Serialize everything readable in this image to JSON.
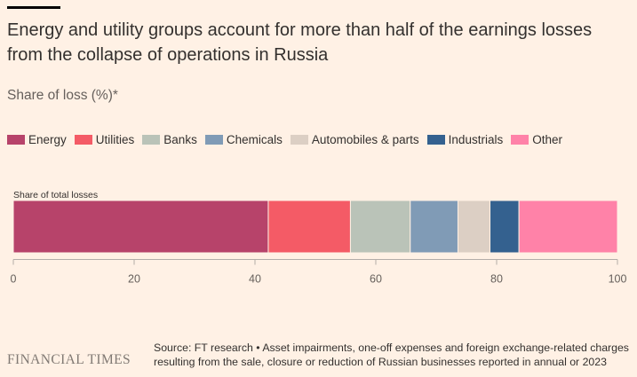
{
  "title": "Energy and utility groups account for more than half of the earnings losses from the collapse of operations in Russia",
  "subtitle": "Share of loss (%)*",
  "legend": [
    {
      "label": "Energy",
      "color": "#B7436A"
    },
    {
      "label": "Utilities",
      "color": "#F45B66"
    },
    {
      "label": "Banks",
      "color": "#BAC3B8"
    },
    {
      "label": "Chemicals",
      "color": "#809BB6"
    },
    {
      "label": "Automobiles & parts",
      "color": "#DCCFC4"
    },
    {
      "label": "Industrials",
      "color": "#34618F"
    },
    {
      "label": "Other",
      "color": "#FF82A8"
    }
  ],
  "chart_data": {
    "type": "bar",
    "orientation": "horizontal",
    "stacked": true,
    "categories": [
      "Share of total losses"
    ],
    "series": [
      {
        "name": "Energy",
        "values": [
          42.2
        ]
      },
      {
        "name": "Utilities",
        "values": [
          13.6
        ]
      },
      {
        "name": "Banks",
        "values": [
          9.9
        ]
      },
      {
        "name": "Chemicals",
        "values": [
          7.9
        ]
      },
      {
        "name": "Automobiles & parts",
        "values": [
          5.3
        ]
      },
      {
        "name": "Industrials",
        "values": [
          4.8
        ]
      },
      {
        "name": "Other",
        "values": [
          16.3
        ]
      }
    ],
    "xlim": [
      0,
      100
    ],
    "xticks": [
      "0",
      "20",
      "40",
      "60",
      "80",
      "100"
    ],
    "xtick_values": [
      0,
      20,
      40,
      60,
      80,
      100
    ],
    "bar_label": "Share of total losses",
    "legend_position": "top-left",
    "grid": false
  },
  "footer": {
    "logo": "FINANCIAL TIMES",
    "source": "Source: FT research • Asset impairments, one-off expenses and foreign exchange-related charges resulting from the sale, closure or reduction of Russian businesses reported in annual or 2023"
  }
}
